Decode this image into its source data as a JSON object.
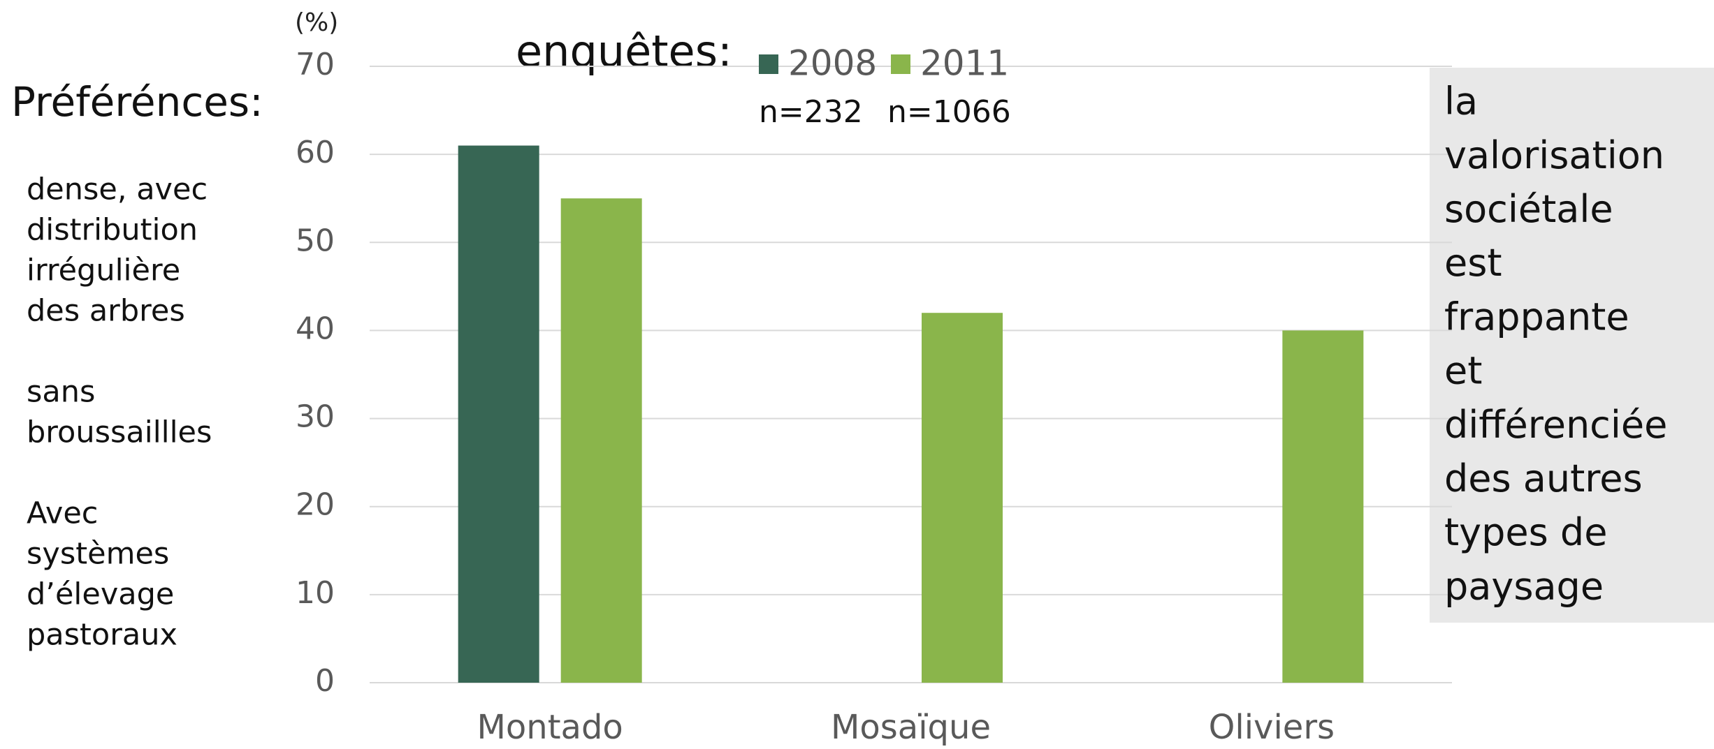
{
  "chart_data": {
    "type": "bar",
    "y_label": "(%)",
    "categories": [
      "Montado",
      "Mosaïque",
      "Oliviers"
    ],
    "series": [
      {
        "name": "2008",
        "color": "#376654",
        "values": [
          61,
          null,
          null
        ],
        "sample": "n=232"
      },
      {
        "name": "2011",
        "color": "#8ab54b",
        "values": [
          55,
          42,
          40
        ],
        "sample": "n=1066"
      }
    ],
    "legend_title": "enquêtes:",
    "ylim": [
      0,
      70
    ],
    "yticks": [
      0,
      10,
      20,
      30,
      40,
      50,
      60,
      70
    ],
    "grid": true,
    "preferences": {
      "title": "Préférénces:",
      "items": [
        [
          "dense, avec",
          "distribution",
          "irrégulière",
          "des arbres"
        ],
        [
          "sans",
          "broussaillles"
        ],
        [
          "Avec",
          "systèmes",
          "d’élevage",
          "pastoraux"
        ]
      ]
    },
    "note": [
      "la",
      "valorisation",
      "sociétale",
      "est",
      "frappante",
      "et",
      "différenciée",
      "des autres",
      "types de",
      "paysage"
    ]
  }
}
